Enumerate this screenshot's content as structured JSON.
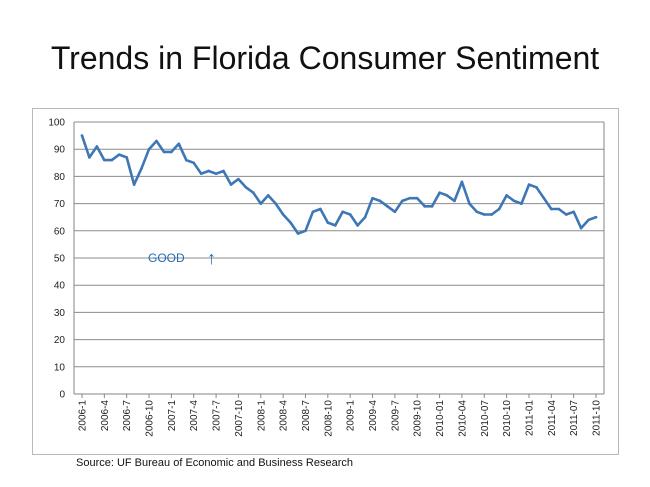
{
  "slide": {
    "title": "Trends in Florida Consumer Sentiment",
    "source": "Source:  UF Bureau  of Economic and Business  Research"
  },
  "chart_data": {
    "type": "line",
    "title": "",
    "xlabel": "",
    "ylabel": "",
    "ylim": [
      0,
      100
    ],
    "yticks": [
      0,
      10,
      20,
      30,
      40,
      50,
      60,
      70,
      80,
      90,
      100
    ],
    "grid": true,
    "x_tick_labels": [
      "2006-1",
      "2006-4",
      "2006-7",
      "2006-10",
      "2007-1",
      "2007-4",
      "2007-7",
      "2007-10",
      "2008-1",
      "2008-4",
      "2008-7",
      "2008-10",
      "2009-1",
      "2009-4",
      "2009-7",
      "2009-10",
      "2010-01",
      "2010-04",
      "2010-07",
      "2010-10",
      "2011-01",
      "2011-04",
      "2011-07",
      "2011-10"
    ],
    "series_color": "#3e77b6",
    "annotation": {
      "text": "GOOD",
      "arrow": "↑",
      "color": "#1f6bb5"
    },
    "series": [
      {
        "values": [
          95,
          87,
          91,
          86,
          86,
          88,
          87,
          77,
          83,
          90,
          93,
          89,
          89,
          92,
          86,
          85,
          81,
          82,
          81,
          82,
          77,
          79,
          76,
          74,
          70,
          73,
          70,
          66,
          63,
          59,
          60,
          67,
          68,
          63,
          62,
          67,
          66,
          62,
          65,
          72,
          71,
          69,
          67,
          71,
          72,
          72,
          69,
          69,
          74,
          73,
          71,
          78,
          70,
          67,
          66,
          66,
          68,
          73,
          71,
          70,
          77,
          76,
          72,
          68,
          68,
          66,
          67,
          61,
          64,
          65
        ]
      }
    ]
  }
}
